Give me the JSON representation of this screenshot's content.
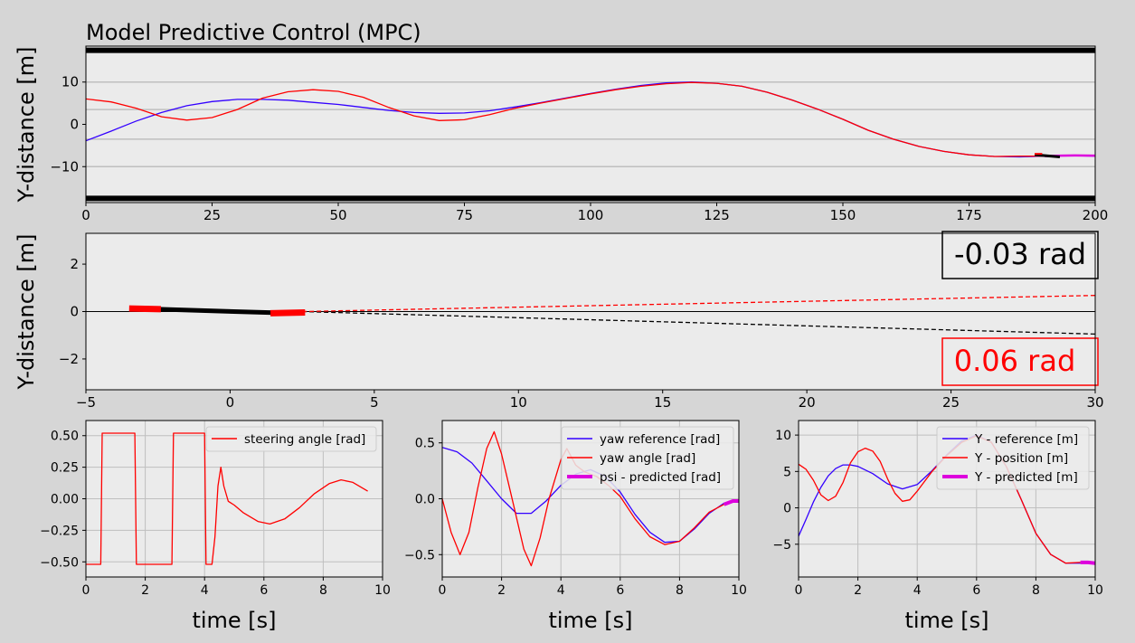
{
  "title": "Model Predictive Control (MPC)",
  "colors": {
    "background": "#d6d6d6",
    "axes_bg": "#ebebeb",
    "grid": "#bfbfbf",
    "reference": "#3300ff",
    "actual": "#ff0000",
    "predicted": "#dd00dd",
    "road": "#000000"
  },
  "chart_data": [
    {
      "id": "top",
      "type": "line",
      "title": "Model Predictive Control (MPC)",
      "xlabel": "",
      "ylabel": "Y-distance [m]",
      "xlim": [
        0,
        200
      ],
      "ylim": [
        -18.5,
        18.5
      ],
      "xticks": [
        "0",
        "25",
        "50",
        "75",
        "100",
        "125",
        "150",
        "175",
        "200"
      ],
      "yticks": [
        "10",
        "0",
        "−10"
      ],
      "road_edges": [
        17.5,
        -17.5
      ],
      "lane_lines": [
        10,
        3.5,
        -3.5,
        -10
      ],
      "series": [
        {
          "role": "reference",
          "color": "#3300ff",
          "x": [
            0,
            5,
            10,
            15,
            20,
            25,
            30,
            35,
            40,
            45,
            50,
            55,
            60,
            65,
            70,
            75,
            80,
            85,
            90,
            95,
            100,
            105,
            110,
            115,
            120,
            125,
            130,
            135,
            140,
            145,
            150,
            155,
            160,
            165,
            170,
            175,
            180,
            185,
            190,
            195,
            200
          ],
          "y": [
            -3.9,
            -1.6,
            0.8,
            2.8,
            4.4,
            5.4,
            5.9,
            5.9,
            5.7,
            5.2,
            4.7,
            4.0,
            3.3,
            2.8,
            2.6,
            2.7,
            3.2,
            4.1,
            5.1,
            6.2,
            7.3,
            8.3,
            9.2,
            9.8,
            10.0,
            9.7,
            9.0,
            7.6,
            5.7,
            3.6,
            1.2,
            -1.4,
            -3.5,
            -5.2,
            -6.4,
            -7.2,
            -7.6,
            -7.7,
            -7.5,
            -7.4,
            -7.5
          ]
        },
        {
          "role": "actual",
          "color": "#ff0000",
          "x": [
            0,
            5,
            10,
            15,
            20,
            25,
            30,
            35,
            40,
            45,
            50,
            55,
            60,
            65,
            70,
            75,
            80,
            85,
            90,
            95,
            100,
            105,
            110,
            115,
            120,
            125,
            130,
            135,
            140,
            145,
            150,
            155,
            160,
            165,
            170,
            175,
            180,
            185,
            190
          ],
          "y": [
            6.0,
            5.3,
            3.8,
            1.8,
            1.0,
            1.6,
            3.5,
            6.2,
            7.7,
            8.2,
            7.8,
            6.4,
            4.0,
            2.0,
            0.9,
            1.1,
            2.3,
            3.8,
            5.0,
            6.1,
            7.2,
            8.2,
            9.0,
            9.6,
            9.9,
            9.7,
            9.0,
            7.6,
            5.7,
            3.6,
            1.2,
            -1.4,
            -3.5,
            -5.2,
            -6.4,
            -7.2,
            -7.6,
            -7.5,
            -7.5
          ]
        },
        {
          "role": "predicted",
          "color": "#dd00dd",
          "x": [
            190,
            193,
            196,
            200
          ],
          "y": [
            -7.5,
            -7.4,
            -7.35,
            -7.4
          ]
        }
      ],
      "vehicle": {
        "x": [
          188,
          193
        ],
        "y": [
          -7.2,
          -7.7
        ]
      }
    },
    {
      "id": "zoom",
      "type": "line",
      "xlabel": "",
      "ylabel": "Y-distance [m]",
      "xlim": [
        -5,
        30
      ],
      "ylim": [
        -3.3,
        3.3
      ],
      "xticks": [
        "−5",
        "0",
        "5",
        "10",
        "15",
        "20",
        "25",
        "30"
      ],
      "yticks": [
        "2",
        "0",
        "−2"
      ],
      "annotations": [
        {
          "text": "-0.03 rad",
          "color": "#000000"
        },
        {
          "text": "0.06 rad",
          "color": "#ff0000"
        }
      ],
      "series": [
        {
          "role": "heading-line",
          "color": "#000000",
          "x": [
            2.5,
            30
          ],
          "y": [
            0,
            -0.95
          ]
        },
        {
          "role": "steering-line",
          "color": "#ff0000",
          "x": [
            2.5,
            30
          ],
          "y": [
            0,
            0.68
          ]
        },
        {
          "role": "vehicle-body",
          "color": "#000000",
          "x": [
            -2.5,
            1.5
          ],
          "y": [
            0.1,
            -0.05
          ]
        },
        {
          "role": "rear-wheel",
          "color": "#ff0000",
          "x": [
            -3.5,
            -2.4
          ],
          "y": [
            0.13,
            0.1
          ]
        },
        {
          "role": "front-wheel",
          "color": "#ff0000",
          "x": [
            1.4,
            2.6
          ],
          "y": [
            -0.07,
            -0.04
          ]
        }
      ]
    },
    {
      "id": "steer",
      "type": "line",
      "xlabel": "time [s]",
      "ylabel": "",
      "xlim": [
        0,
        10
      ],
      "ylim": [
        -0.62,
        0.62
      ],
      "xticks": [
        "0",
        "2",
        "4",
        "6",
        "8",
        "10"
      ],
      "yticks": [
        "0.50",
        "0.25",
        "0.00",
        "−0.25",
        "−0.50"
      ],
      "legend": [
        {
          "label": "steering angle [rad]",
          "color": "#ff0000"
        }
      ],
      "series": [
        {
          "role": "steering",
          "color": "#ff0000",
          "x": [
            0,
            0.5,
            0.55,
            1.65,
            1.7,
            2.9,
            2.95,
            4.0,
            4.05,
            4.25,
            4.35,
            4.45,
            4.55,
            4.65,
            4.8,
            5.0,
            5.3,
            5.8,
            6.2,
            6.7,
            7.2,
            7.7,
            8.2,
            8.6,
            9.0,
            9.5
          ],
          "y": [
            -0.52,
            -0.52,
            0.52,
            0.52,
            -0.52,
            -0.52,
            0.52,
            0.52,
            -0.52,
            -0.52,
            -0.3,
            0.1,
            0.25,
            0.1,
            -0.02,
            -0.05,
            -0.11,
            -0.18,
            -0.2,
            -0.16,
            -0.07,
            0.04,
            0.12,
            0.15,
            0.13,
            0.06
          ]
        }
      ]
    },
    {
      "id": "yaw",
      "type": "line",
      "xlabel": "time [s]",
      "ylabel": "",
      "xlim": [
        0,
        10
      ],
      "ylim": [
        -0.7,
        0.7
      ],
      "xticks": [
        "0",
        "2",
        "4",
        "6",
        "8",
        "10"
      ],
      "yticks": [
        "0.5",
        "0.0",
        "−0.5"
      ],
      "legend": [
        {
          "label": "yaw reference [rad]",
          "color": "#3300ff"
        },
        {
          "label": "yaw angle [rad]",
          "color": "#ff0000"
        },
        {
          "label": "psi - predicted [rad]",
          "color": "#dd00dd"
        }
      ],
      "series": [
        {
          "role": "reference",
          "color": "#3300ff",
          "x": [
            0,
            0.5,
            1.0,
            1.5,
            2.0,
            2.5,
            3.0,
            3.5,
            4.0,
            4.5,
            5.0,
            5.5,
            6.0,
            6.5,
            7.0,
            7.5,
            8.0,
            8.5,
            9.0,
            9.5
          ],
          "y": [
            0.46,
            0.42,
            0.32,
            0.16,
            0.0,
            -0.13,
            -0.13,
            -0.02,
            0.12,
            0.22,
            0.26,
            0.2,
            0.06,
            -0.14,
            -0.3,
            -0.39,
            -0.38,
            -0.27,
            -0.13,
            -0.04
          ]
        },
        {
          "role": "actual",
          "color": "#ff0000",
          "x": [
            0,
            0.3,
            0.6,
            0.9,
            1.2,
            1.5,
            1.75,
            2.0,
            2.4,
            2.75,
            3.0,
            3.3,
            3.6,
            4.0,
            4.2,
            4.5,
            4.8,
            5.2,
            5.6,
            6.0,
            6.5,
            7.0,
            7.5,
            8.0,
            8.5,
            9.0,
            9.5
          ],
          "y": [
            0.0,
            -0.3,
            -0.5,
            -0.3,
            0.1,
            0.45,
            0.6,
            0.4,
            -0.05,
            -0.45,
            -0.6,
            -0.35,
            0.0,
            0.35,
            0.45,
            0.3,
            0.24,
            0.2,
            0.12,
            0.02,
            -0.18,
            -0.34,
            -0.41,
            -0.38,
            -0.26,
            -0.12,
            -0.05
          ]
        },
        {
          "role": "predicted",
          "color": "#dd00dd",
          "x": [
            9.5,
            9.8,
            10.0
          ],
          "y": [
            -0.05,
            -0.02,
            -0.02
          ]
        }
      ]
    },
    {
      "id": "ypos",
      "type": "line",
      "xlabel": "time [s]",
      "ylabel": "",
      "xlim": [
        0,
        10
      ],
      "ylim": [
        -9.5,
        12
      ],
      "xticks": [
        "0",
        "2",
        "4",
        "6",
        "8",
        "10"
      ],
      "yticks": [
        "10",
        "5",
        "0",
        "−5"
      ],
      "legend": [
        {
          "label": "Y - reference [m]",
          "color": "#3300ff"
        },
        {
          "label": "Y - position [m]",
          "color": "#ff0000"
        },
        {
          "label": "Y - predicted [m]",
          "color": "#dd00dd"
        }
      ],
      "series": [
        {
          "role": "reference",
          "color": "#3300ff",
          "x": [
            0,
            0.25,
            0.5,
            0.75,
            1.0,
            1.25,
            1.5,
            1.75,
            2.0,
            2.5,
            3.0,
            3.5,
            4.0,
            4.5,
            5.0,
            5.5,
            6.0,
            6.5,
            7.0,
            7.5,
            8.0,
            8.5,
            9.0,
            9.5
          ],
          "y": [
            -3.9,
            -1.6,
            0.8,
            2.8,
            4.4,
            5.4,
            5.9,
            5.9,
            5.7,
            4.7,
            3.3,
            2.6,
            3.2,
            5.1,
            7.3,
            9.2,
            10.0,
            9.0,
            5.7,
            1.2,
            -3.5,
            -6.4,
            -7.6,
            -7.6
          ]
        },
        {
          "role": "actual",
          "color": "#ff0000",
          "x": [
            0,
            0.25,
            0.5,
            0.75,
            1.0,
            1.25,
            1.5,
            1.75,
            2.0,
            2.25,
            2.5,
            2.75,
            3.0,
            3.25,
            3.5,
            3.75,
            4.0,
            4.5,
            5.0,
            5.5,
            6.0,
            6.5,
            7.0,
            7.5,
            8.0,
            8.5,
            9.0,
            9.5
          ],
          "y": [
            6.0,
            5.3,
            3.8,
            1.8,
            1.0,
            1.6,
            3.5,
            6.2,
            7.7,
            8.2,
            7.8,
            6.4,
            4.0,
            2.0,
            0.9,
            1.1,
            2.3,
            5.0,
            7.2,
            9.0,
            9.9,
            9.0,
            5.7,
            1.2,
            -3.5,
            -6.4,
            -7.6,
            -7.5
          ]
        },
        {
          "role": "predicted",
          "color": "#dd00dd",
          "x": [
            9.5,
            9.75,
            10.0
          ],
          "y": [
            -7.5,
            -7.5,
            -7.6
          ]
        }
      ]
    }
  ]
}
